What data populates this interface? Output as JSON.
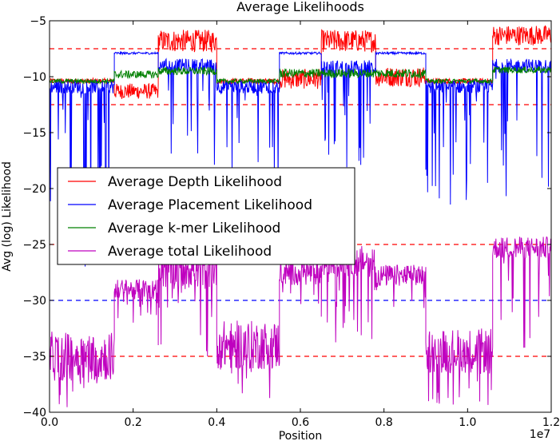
{
  "chart_data": {
    "type": "line",
    "title": "Average Likelihoods",
    "xlabel": "Position",
    "ylabel": "Avg (log) Likelihood",
    "x_offset_text": "1e7",
    "xlim": [
      0.0,
      1.2
    ],
    "ylim": [
      -40,
      -5
    ],
    "x_ticks": [
      0.0,
      0.2,
      0.4,
      0.6,
      0.8,
      1.0,
      1.2
    ],
    "x_tick_labels": [
      "0.0",
      "0.2",
      "0.4",
      "0.6",
      "0.8",
      "1.0",
      "1.2"
    ],
    "y_ticks": [
      -40,
      -35,
      -30,
      -25,
      -20,
      -15,
      -10,
      -5
    ],
    "y_tick_labels": [
      "−40",
      "−35",
      "−30",
      "−25",
      "−20",
      "−15",
      "−10",
      "−5"
    ],
    "legend_position": "center-left",
    "reference_lines": [
      {
        "y": -7.5,
        "color": "#ff0000",
        "style": "dashed"
      },
      {
        "y": -12.5,
        "color": "#ff0000",
        "style": "dashed"
      },
      {
        "y": -25,
        "color": "#ff0000",
        "style": "dashed"
      },
      {
        "y": -35,
        "color": "#ff0000",
        "style": "dashed"
      },
      {
        "y": -30,
        "color": "#0000ff",
        "style": "dashed"
      }
    ],
    "series": [
      {
        "name": "Average Depth Likelihood",
        "color": "#ff0000",
        "segments": [
          {
            "x": [
              0.0,
              0.155
            ],
            "mean": -10.4,
            "noise": 0.25
          },
          {
            "x": [
              0.155,
              0.26
            ],
            "mean": -11.3,
            "noise": 0.7
          },
          {
            "x": [
              0.26,
              0.4
            ],
            "mean": -6.8,
            "noise": 1.0
          },
          {
            "x": [
              0.4,
              0.55
            ],
            "mean": -10.4,
            "noise": 0.25
          },
          {
            "x": [
              0.55,
              0.65
            ],
            "mean": -10.2,
            "noise": 0.9
          },
          {
            "x": [
              0.65,
              0.78
            ],
            "mean": -6.8,
            "noise": 1.0
          },
          {
            "x": [
              0.78,
              0.9
            ],
            "mean": -10.0,
            "noise": 0.9
          },
          {
            "x": [
              0.9,
              1.06
            ],
            "mean": -10.4,
            "noise": 0.25
          },
          {
            "x": [
              1.06,
              1.2
            ],
            "mean": -6.3,
            "noise": 0.9
          }
        ]
      },
      {
        "name": "Average Placement Likelihood",
        "color": "#0000ff",
        "segments": [
          {
            "x": [
              0.0,
              0.155
            ],
            "mean": -10.9,
            "noise": 0.6,
            "drop": 17
          },
          {
            "x": [
              0.155,
              0.26
            ],
            "mean": -7.9,
            "noise": 0.1,
            "drop": 0
          },
          {
            "x": [
              0.26,
              0.4
            ],
            "mean": -9.0,
            "noise": 0.6,
            "drop": 9
          },
          {
            "x": [
              0.4,
              0.55
            ],
            "mean": -10.9,
            "noise": 0.6,
            "drop": 10
          },
          {
            "x": [
              0.55,
              0.65
            ],
            "mean": -7.9,
            "noise": 0.1,
            "drop": 0
          },
          {
            "x": [
              0.65,
              0.78
            ],
            "mean": -9.2,
            "noise": 0.7,
            "drop": 9
          },
          {
            "x": [
              0.78,
              0.9
            ],
            "mean": -7.9,
            "noise": 0.1,
            "drop": 0
          },
          {
            "x": [
              0.9,
              1.06
            ],
            "mean": -10.9,
            "noise": 0.6,
            "drop": 11
          },
          {
            "x": [
              1.06,
              1.2
            ],
            "mean": -9.0,
            "noise": 0.6,
            "drop": 12
          }
        ]
      },
      {
        "name": "Average k-mer Likelihood",
        "color": "#008000",
        "segments": [
          {
            "x": [
              0.0,
              0.155
            ],
            "mean": -10.4,
            "noise": 0.2
          },
          {
            "x": [
              0.155,
              0.26
            ],
            "mean": -9.8,
            "noise": 0.35
          },
          {
            "x": [
              0.26,
              0.4
            ],
            "mean": -9.5,
            "noise": 0.35
          },
          {
            "x": [
              0.4,
              0.55
            ],
            "mean": -10.4,
            "noise": 0.2
          },
          {
            "x": [
              0.55,
              0.9
            ],
            "mean": -9.7,
            "noise": 0.4
          },
          {
            "x": [
              0.9,
              1.06
            ],
            "mean": -10.4,
            "noise": 0.2
          },
          {
            "x": [
              1.06,
              1.2
            ],
            "mean": -9.4,
            "noise": 0.3
          }
        ]
      },
      {
        "name": "Average total Likelihood",
        "color": "#bf00bf",
        "segments": [
          {
            "x": [
              0.0,
              0.155
            ],
            "mean": -35.0,
            "noise": 2.2,
            "drop": 5
          },
          {
            "x": [
              0.155,
              0.26
            ],
            "mean": -29.0,
            "noise": 0.9,
            "drop": 3
          },
          {
            "x": [
              0.26,
              0.4
            ],
            "mean": -27.0,
            "noise": 2.0,
            "drop": 8
          },
          {
            "x": [
              0.4,
              0.55
            ],
            "mean": -34.0,
            "noise": 2.2,
            "drop": 5
          },
          {
            "x": [
              0.55,
              0.65
            ],
            "mean": -27.5,
            "noise": 1.2,
            "drop": 3
          },
          {
            "x": [
              0.65,
              0.78
            ],
            "mean": -26.5,
            "noise": 1.4,
            "drop": 8
          },
          {
            "x": [
              0.78,
              0.9
            ],
            "mean": -27.8,
            "noise": 1.0,
            "drop": 3
          },
          {
            "x": [
              0.9,
              1.06
            ],
            "mean": -34.5,
            "noise": 2.0,
            "drop": 5
          },
          {
            "x": [
              1.06,
              1.2
            ],
            "mean": -25.3,
            "noise": 1.0,
            "drop": 10
          }
        ]
      }
    ]
  }
}
